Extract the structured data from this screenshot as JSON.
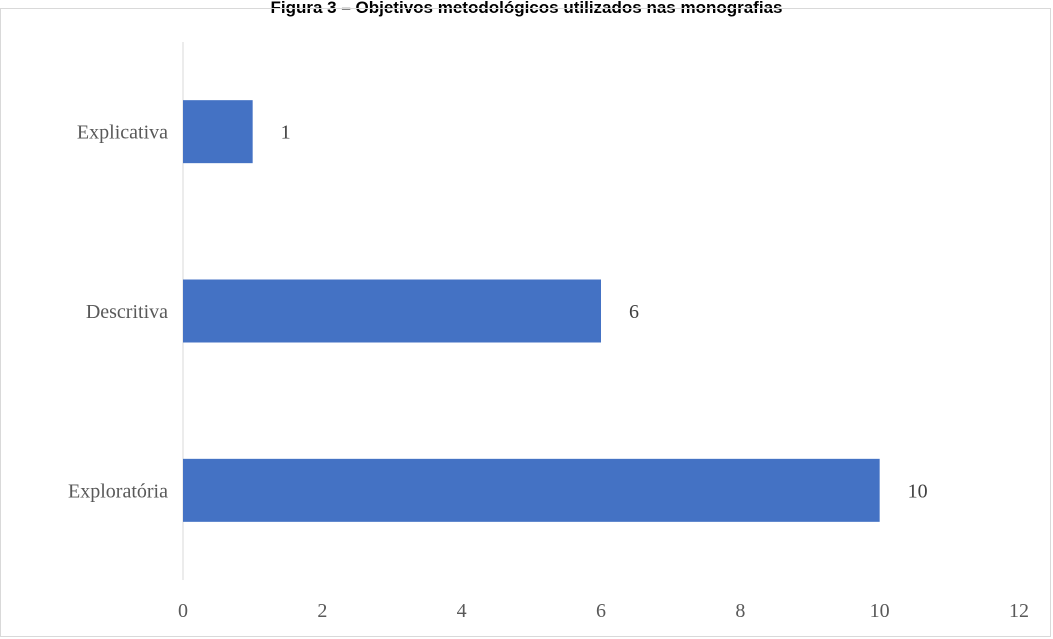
{
  "caption": "Figura 3 – Objetivos metodológicos utilizados nas monografias",
  "colors": {
    "bar": "#4472C4",
    "axis": "#d9d9d9",
    "text": "#595959"
  },
  "chart_data": {
    "type": "bar",
    "orientation": "horizontal",
    "title": "Figura 3 – Objetivos metodológicos utilizados nas monografias",
    "categories": [
      "Explicativa",
      "Descritiva",
      "Exploratória"
    ],
    "values": [
      1,
      6,
      10
    ],
    "data_labels": [
      "1",
      "6",
      "10"
    ],
    "xlim": [
      0,
      12
    ],
    "xticks": [
      "0",
      "2",
      "4",
      "6",
      "8",
      "10",
      "12"
    ],
    "grid": false,
    "legend": "none"
  }
}
